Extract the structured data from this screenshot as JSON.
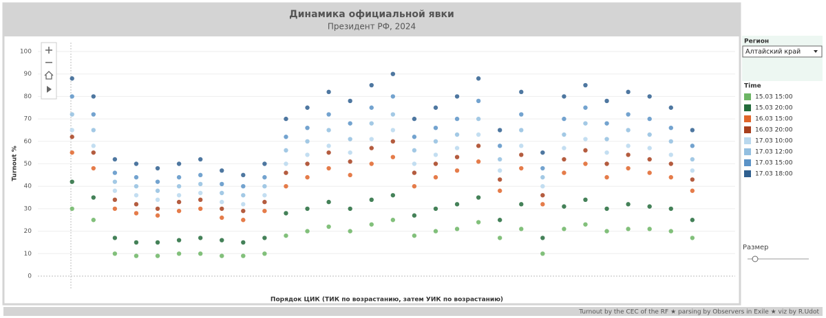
{
  "chart_data": {
    "type": "scatter",
    "title": "Динамика официальной явки",
    "subtitle": "Президент РФ, 2024",
    "y_label": "Turnout %",
    "x_label": "Порядок ЦИК (ТИК по возрастанию, затем УИК по возрастанию)",
    "ylim": [
      -3,
      103
    ],
    "yticks": [
      0,
      10,
      20,
      30,
      40,
      50,
      60,
      70,
      80,
      90,
      100
    ],
    "xlim": [
      -1.6,
      31
    ],
    "grid": true,
    "x": [
      0,
      1,
      2,
      3,
      4,
      5,
      6,
      7,
      8,
      9,
      10,
      11,
      12,
      13,
      14,
      15,
      16,
      17,
      18,
      19,
      20,
      21,
      22,
      23,
      24,
      25,
      26,
      27,
      28,
      29
    ],
    "series": [
      {
        "name": "15.03 15:00",
        "color": "#6cb564",
        "values": [
          30,
          25,
          10,
          9,
          9,
          10,
          10,
          9,
          9,
          10,
          18,
          20,
          22,
          20,
          23,
          25,
          18,
          20,
          21,
          24,
          17,
          21,
          10,
          21,
          23,
          20,
          21,
          21,
          20,
          17
        ]
      },
      {
        "name": "15.03 20:00",
        "color": "#236b3b",
        "values": [
          42,
          35,
          17,
          15,
          15,
          16,
          17,
          16,
          15,
          17,
          28,
          30,
          33,
          30,
          34,
          36,
          27,
          30,
          32,
          35,
          25,
          32,
          17,
          31,
          34,
          30,
          32,
          31,
          30,
          25
        ]
      },
      {
        "name": "16.03 15:00",
        "color": "#e0652a",
        "values": [
          55,
          48,
          30,
          28,
          27,
          29,
          30,
          26,
          25,
          29,
          40,
          44,
          48,
          45,
          50,
          53,
          40,
          44,
          47,
          51,
          38,
          48,
          32,
          46,
          50,
          44,
          48,
          46,
          44,
          38
        ]
      },
      {
        "name": "16.03 20:00",
        "color": "#a73f1d",
        "values": [
          62,
          55,
          34,
          32,
          30,
          33,
          34,
          30,
          29,
          33,
          46,
          50,
          55,
          51,
          57,
          60,
          46,
          50,
          53,
          58,
          43,
          54,
          36,
          52,
          56,
          50,
          54,
          52,
          50,
          43
        ]
      },
      {
        "name": "17.03 10:00",
        "color": "#b9d8ee",
        "values": [
          65,
          58,
          38,
          36,
          34,
          36,
          37,
          33,
          32,
          36,
          50,
          54,
          58,
          55,
          61,
          65,
          50,
          54,
          57,
          63,
          47,
          58,
          40,
          57,
          61,
          55,
          58,
          57,
          54,
          47
        ]
      },
      {
        "name": "17.03 12:00",
        "color": "#93bfe0",
        "values": [
          72,
          65,
          42,
          40,
          38,
          40,
          41,
          37,
          36,
          40,
          56,
          60,
          65,
          61,
          68,
          72,
          56,
          60,
          63,
          70,
          52,
          65,
          44,
          63,
          68,
          61,
          65,
          63,
          60,
          52
        ]
      },
      {
        "name": "17.03 15:00",
        "color": "#5b93c7",
        "values": [
          80,
          72,
          46,
          44,
          42,
          44,
          45,
          41,
          40,
          44,
          62,
          66,
          72,
          68,
          75,
          80,
          62,
          66,
          70,
          78,
          58,
          72,
          48,
          70,
          75,
          68,
          72,
          70,
          66,
          58
        ]
      },
      {
        "name": "17.03 18:00",
        "color": "#2f5f8f",
        "values": [
          88,
          80,
          52,
          50,
          48,
          50,
          52,
          47,
          45,
          50,
          70,
          75,
          82,
          78,
          85,
          90,
          70,
          75,
          80,
          88,
          65,
          82,
          55,
          80,
          85,
          78,
          82,
          80,
          75,
          65
        ]
      }
    ]
  },
  "controls": {
    "region_label": "Регион",
    "region_value": "Алтайский край",
    "legend_title": "Time",
    "size_label": "Размер"
  },
  "footer": "Turnout by the CEC of the RF ★ parsing by Observers in Exile ★ viz by R.Udot"
}
